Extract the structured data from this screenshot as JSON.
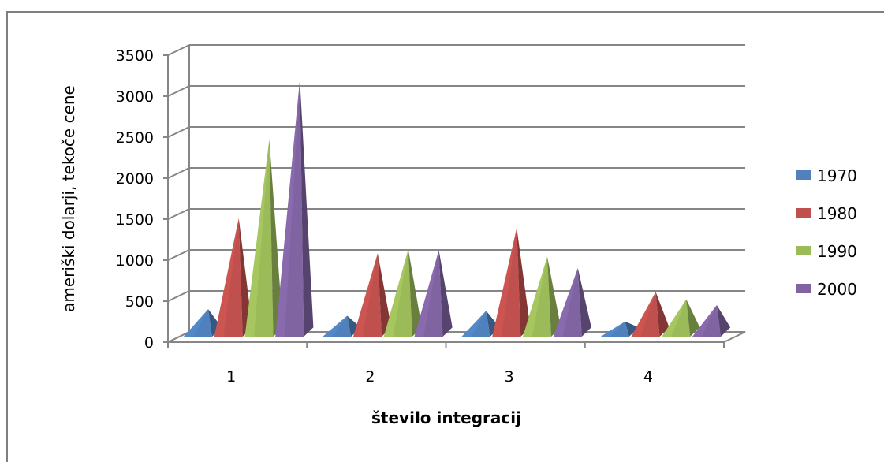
{
  "chart_data": {
    "type": "bar",
    "bar_style": "3d-pyramid",
    "title": "",
    "xlabel": "število integracij",
    "ylabel": "ameriški dolarji, tekoče cene",
    "categories": [
      "1",
      "2",
      "3",
      "4"
    ],
    "ylim": [
      0,
      3500
    ],
    "yticks": [
      "0",
      "500",
      "1000",
      "1500",
      "2000",
      "2500",
      "3000",
      "3500"
    ],
    "grid": true,
    "legend_position": "right",
    "series": [
      {
        "name": "1970",
        "color": "#4f81bd",
        "values": [
          340,
          260,
          320,
          190
        ]
      },
      {
        "name": "1980",
        "color": "#c0504d",
        "values": [
          1450,
          1020,
          1330,
          550
        ]
      },
      {
        "name": "1990",
        "color": "#9bbb59",
        "values": [
          2410,
          1070,
          980,
          460
        ]
      },
      {
        "name": "2000",
        "color": "#8064a2",
        "values": [
          3140,
          1060,
          840,
          390
        ]
      }
    ]
  }
}
